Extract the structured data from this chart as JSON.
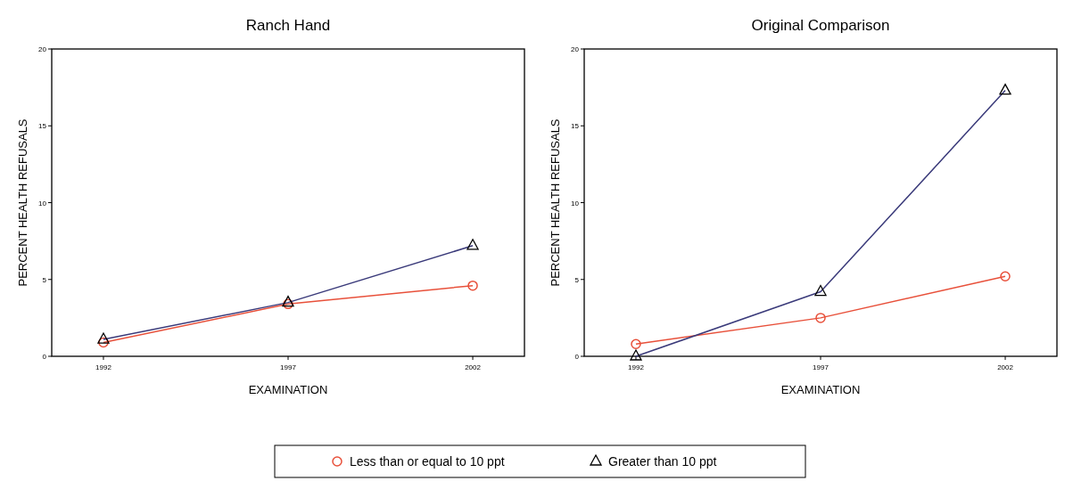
{
  "chart_data": [
    {
      "type": "line",
      "title": "Ranch Hand",
      "xlabel": "EXAMINATION",
      "ylabel": "PERCENT HEALTH REFUSALS",
      "categories": [
        "1992",
        "1997",
        "2002"
      ],
      "ylim": [
        0,
        20
      ],
      "yticks": [
        0,
        5,
        10,
        15,
        20
      ],
      "legend": "bottom",
      "series": [
        {
          "name": "Less than or equal to 10 ppt",
          "color": "#e8503a",
          "marker": "circle",
          "values": [
            0.9,
            3.4,
            4.6
          ]
        },
        {
          "name": "Greater than 10 ppt",
          "color": "#3a3a7a",
          "marker": "triangle",
          "values": [
            1.1,
            3.5,
            7.2
          ]
        }
      ]
    },
    {
      "type": "line",
      "title": "Original Comparison",
      "xlabel": "EXAMINATION",
      "ylabel": "PERCENT HEALTH REFUSALS",
      "categories": [
        "1992",
        "1997",
        "2002"
      ],
      "ylim": [
        0,
        20
      ],
      "yticks": [
        0,
        5,
        10,
        15,
        20
      ],
      "series": [
        {
          "color": "#e8503a",
          "marker": "circle",
          "values": [
            0.8,
            2.5,
            5.2
          ]
        },
        {
          "color": "#3a3a7a",
          "marker": "triangle",
          "values": [
            0.0,
            4.2,
            17.3
          ]
        }
      ]
    }
  ]
}
